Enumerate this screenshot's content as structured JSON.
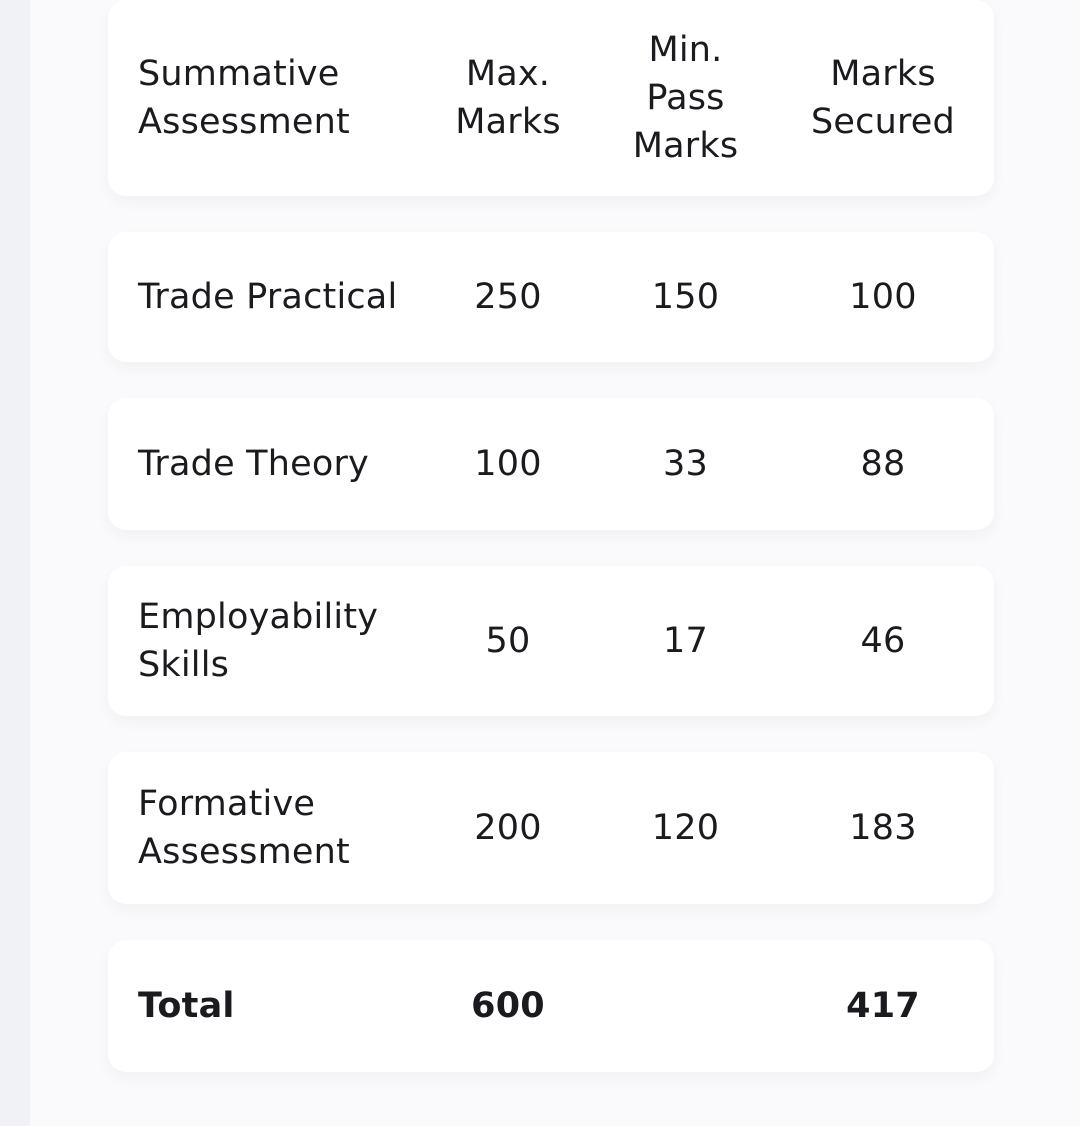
{
  "table": {
    "headers": [
      "Summative Assessment",
      "Max. Marks",
      "Min. Pass Marks",
      "Marks Secured"
    ],
    "header_lines": [
      [
        "Summative",
        "Assessment"
      ],
      [
        "Max.",
        "Marks"
      ],
      [
        "Min.",
        "Pass",
        "Marks"
      ],
      [
        "Marks",
        "Secured"
      ]
    ],
    "rows": [
      {
        "lines": [
          "Trade Practical"
        ],
        "max": "250",
        "min_pass": "150",
        "secured": "100"
      },
      {
        "lines": [
          "Trade Theory"
        ],
        "max": "100",
        "min_pass": "33",
        "secured": "88"
      },
      {
        "lines": [
          "Employability",
          "Skills"
        ],
        "max": "50",
        "min_pass": "17",
        "secured": "46"
      },
      {
        "lines": [
          "Formative",
          "Assessment"
        ],
        "max": "200",
        "min_pass": "120",
        "secured": "183"
      }
    ],
    "total": {
      "label": "Total",
      "max": "600",
      "min_pass": "",
      "secured": "417"
    }
  }
}
